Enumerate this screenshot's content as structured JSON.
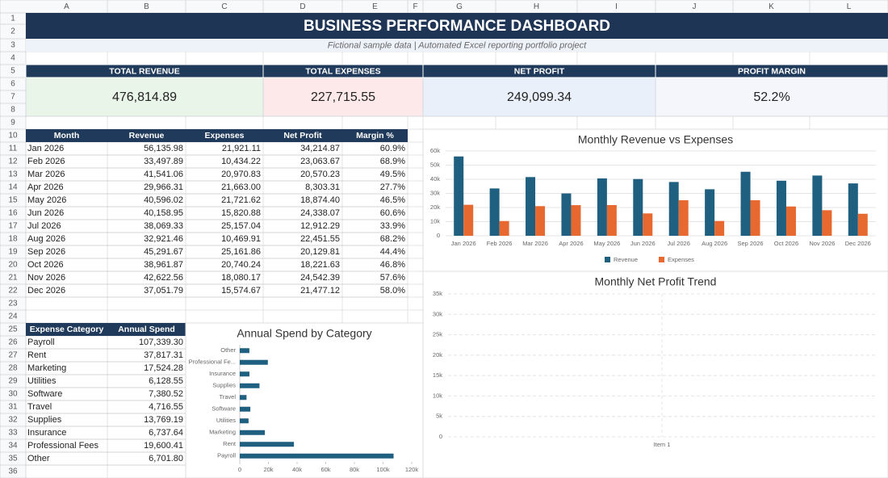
{
  "sheet": {
    "columns": [
      "A",
      "B",
      "C",
      "D",
      "E",
      "F",
      "G",
      "H",
      "I",
      "J",
      "K",
      "L"
    ],
    "rows": [
      1,
      2,
      3,
      4,
      5,
      6,
      7,
      8,
      9,
      10,
      11,
      12,
      13,
      14,
      15,
      16,
      17,
      18,
      19,
      20,
      21,
      22,
      23,
      24,
      25,
      26,
      27,
      28,
      29,
      30,
      31,
      32,
      33,
      34,
      35,
      36
    ]
  },
  "header": {
    "title": "BUSINESS PERFORMANCE DASHBOARD",
    "subtitle": "Fictional sample data | Automated Excel reporting portfolio project"
  },
  "kpis": [
    {
      "label": "TOTAL REVENUE",
      "value": "476,814.89"
    },
    {
      "label": "TOTAL EXPENSES",
      "value": "227,715.55"
    },
    {
      "label": "NET PROFIT",
      "value": "249,099.34"
    },
    {
      "label": "PROFIT MARGIN",
      "value": "52.2%"
    }
  ],
  "monthly_table": {
    "columns": [
      "Month",
      "Revenue",
      "Expenses",
      "Net Profit",
      "Margin %"
    ],
    "rows": [
      [
        "Jan 2026",
        "56,135.98",
        "21,921.11",
        "34,214.87",
        "60.9%"
      ],
      [
        "Feb 2026",
        "33,497.89",
        "10,434.22",
        "23,063.67",
        "68.9%"
      ],
      [
        "Mar 2026",
        "41,541.06",
        "20,970.83",
        "20,570.23",
        "49.5%"
      ],
      [
        "Apr 2026",
        "29,966.31",
        "21,663.00",
        "8,303.31",
        "27.7%"
      ],
      [
        "May 2026",
        "40,596.02",
        "21,721.62",
        "18,874.40",
        "46.5%"
      ],
      [
        "Jun 2026",
        "40,158.95",
        "15,820.88",
        "24,338.07",
        "60.6%"
      ],
      [
        "Jul 2026",
        "38,069.33",
        "25,157.04",
        "12,912.29",
        "33.9%"
      ],
      [
        "Aug 2026",
        "32,921.46",
        "10,469.91",
        "22,451.55",
        "68.2%"
      ],
      [
        "Sep 2026",
        "45,291.67",
        "25,161.86",
        "20,129.81",
        "44.4%"
      ],
      [
        "Oct 2026",
        "38,961.87",
        "20,740.24",
        "18,221.63",
        "46.8%"
      ],
      [
        "Nov 2026",
        "42,622.56",
        "18,080.17",
        "24,542.39",
        "57.6%"
      ],
      [
        "Dec 2026",
        "37,051.79",
        "15,574.67",
        "21,477.12",
        "58.0%"
      ]
    ]
  },
  "expense_table": {
    "columns": [
      "Expense Category",
      "Annual Spend"
    ],
    "rows": [
      [
        "Payroll",
        "107,339.30"
      ],
      [
        "Rent",
        "37,817.31"
      ],
      [
        "Marketing",
        "17,524.28"
      ],
      [
        "Utilities",
        "6,128.55"
      ],
      [
        "Software",
        "7,380.52"
      ],
      [
        "Travel",
        "4,716.55"
      ],
      [
        "Supplies",
        "13,769.19"
      ],
      [
        "Insurance",
        "6,737.64"
      ],
      [
        "Professional Fees",
        "19,600.41"
      ],
      [
        "Other",
        "6,701.80"
      ]
    ]
  },
  "chart_data": [
    {
      "type": "bar",
      "title": "Monthly Revenue vs Expenses",
      "categories": [
        "Jan 2026",
        "Feb 2026",
        "Mar 2026",
        "Apr 2026",
        "May 2026",
        "Jun 2026",
        "Jul 2026",
        "Aug 2026",
        "Sep 2026",
        "Oct 2026",
        "Nov 2026",
        "Dec 2026"
      ],
      "series": [
        {
          "name": "Revenue",
          "color": "#1f5f7f",
          "values": [
            56135.98,
            33497.89,
            41541.06,
            29966.31,
            40596.02,
            40158.95,
            38069.33,
            32921.46,
            45291.67,
            38961.87,
            42622.56,
            37051.79
          ]
        },
        {
          "name": "Expenses",
          "color": "#e8692f",
          "values": [
            21921.11,
            10434.22,
            20970.83,
            21663.0,
            21721.62,
            15820.88,
            25157.04,
            10469.91,
            25161.86,
            20740.24,
            18080.17,
            15574.67
          ]
        }
      ],
      "ylim": [
        0,
        60000
      ],
      "yticks": [
        0,
        {
          "value": 10000,
          "label": "10k"
        },
        {
          "value": 20000,
          "label": "20k"
        },
        {
          "value": 30000,
          "label": "30k"
        },
        {
          "value": 40000,
          "label": "40k"
        },
        {
          "value": 50000,
          "label": "50k"
        },
        {
          "value": 60000,
          "label": "60k"
        }
      ],
      "grid": true,
      "legend": "bottom"
    },
    {
      "type": "line",
      "title": "Monthly Net Profit Trend",
      "categories": [
        "Item 1"
      ],
      "ylim": [
        0,
        35000
      ],
      "yticks": [
        0,
        {
          "value": 5000,
          "label": "5k"
        },
        {
          "value": 10000,
          "label": "10k"
        },
        {
          "value": 15000,
          "label": "15k"
        },
        {
          "value": 20000,
          "label": "20k"
        },
        {
          "value": 25000,
          "label": "25k"
        },
        {
          "value": 30000,
          "label": "30k"
        },
        {
          "value": 35000,
          "label": "35k"
        }
      ],
      "grid": true
    },
    {
      "type": "bar",
      "orientation": "horizontal",
      "title": "Annual Spend by Category",
      "categories": [
        "Payroll",
        "Rent",
        "Marketing",
        "Utilities",
        "Software",
        "Travel",
        "Supplies",
        "Insurance",
        "Professional Fe...",
        "Other"
      ],
      "values": [
        107339.3,
        37817.31,
        17524.28,
        6128.55,
        7380.52,
        4716.55,
        13769.19,
        6737.64,
        19600.41,
        6701.8
      ],
      "color": "#1f5f7f",
      "xlim": [
        0,
        120000
      ],
      "xticks": [
        0,
        {
          "value": 20000,
          "label": "20k"
        },
        {
          "value": 40000,
          "label": "40k"
        },
        {
          "value": 60000,
          "label": "60k"
        },
        {
          "value": 80000,
          "label": "80k"
        },
        {
          "value": 100000,
          "label": "100k"
        },
        {
          "value": 120000,
          "label": "120k"
        }
      ]
    }
  ]
}
